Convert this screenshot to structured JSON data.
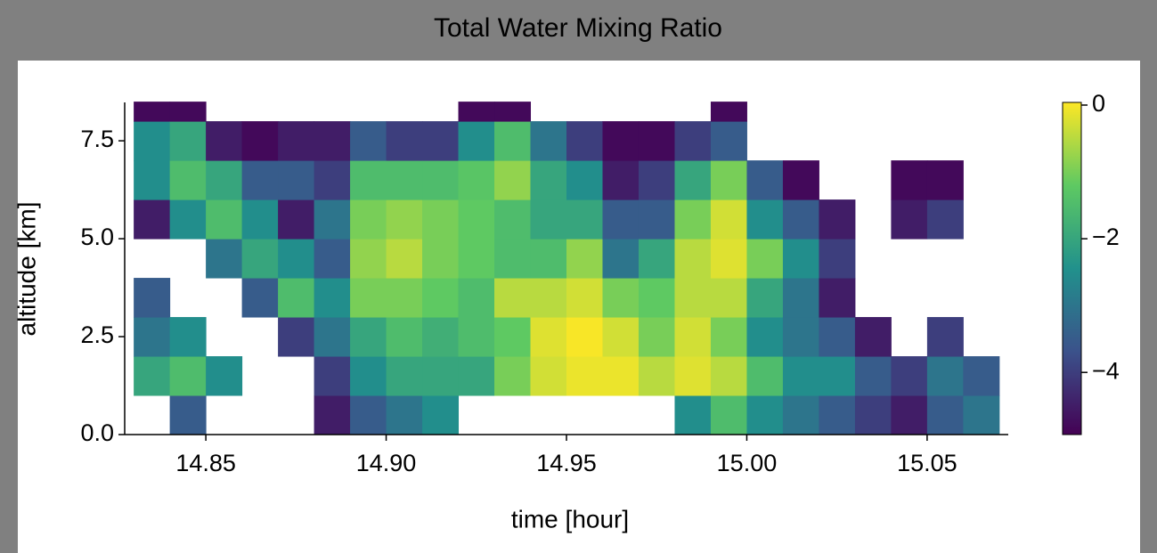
{
  "chart_data": {
    "type": "heatmap",
    "title": "Total Water Mixing Ratio",
    "x_label": "time [hour]",
    "y_label": "altitude [km]",
    "x_edges": [
      14.83,
      14.84,
      14.85,
      14.86,
      14.87,
      14.88,
      14.89,
      14.9,
      14.91,
      14.92,
      14.93,
      14.94,
      14.95,
      14.96,
      14.97,
      14.98,
      14.99,
      15.0,
      15.01,
      15.02,
      15.03,
      15.04,
      15.05,
      15.06,
      15.07
    ],
    "y_edges": [
      0,
      1,
      2,
      3,
      4,
      5,
      6,
      7,
      8,
      8.5
    ],
    "values": [
      [
        null,
        -2,
        -3,
        -3.5,
        null,
        -4.5,
        -2.5,
        -2.5,
        -4.8
      ],
      [
        -3.5,
        -1.5,
        -2.5,
        null,
        null,
        -2.5,
        -1.5,
        -2,
        -4.8
      ],
      [
        null,
        -2.5,
        null,
        null,
        -3,
        -1.5,
        -2,
        -4.5,
        null
      ],
      [
        null,
        null,
        null,
        -3.5,
        -2,
        -2.5,
        -3.5,
        -4.8,
        null
      ],
      [
        null,
        null,
        -4,
        -1.5,
        -2.5,
        -4.5,
        -3.5,
        -4.5,
        null
      ],
      [
        -4.5,
        -4,
        -3,
        -2.5,
        -3.5,
        -3,
        -4,
        -4.5,
        null
      ],
      [
        -3.5,
        -2.5,
        -2,
        -1,
        -0.8,
        -1,
        -1.5,
        -3.5,
        null
      ],
      [
        -3,
        -2,
        -1.5,
        -1,
        -0.5,
        -0.8,
        -1.5,
        -4,
        null
      ],
      [
        -2.5,
        -2,
        -1.8,
        -1.2,
        -1,
        -1,
        -1.5,
        -4,
        null
      ],
      [
        null,
        -2,
        -1.5,
        -1.5,
        -1.2,
        -1.2,
        -1.3,
        -2.5,
        -4.8
      ],
      [
        null,
        -1,
        -1.2,
        -0.5,
        -1.5,
        -1.5,
        -0.8,
        -1.5,
        -4.8
      ],
      [
        null,
        -0.3,
        -0.2,
        -0.5,
        -1.5,
        -2,
        -2,
        -3,
        null
      ],
      [
        null,
        -0.1,
        0,
        -0.3,
        -0.8,
        -2,
        -2.5,
        -4,
        null
      ],
      [
        null,
        -0.1,
        -0.3,
        -1,
        -3,
        -3.5,
        -4.5,
        -4.8,
        null
      ],
      [
        null,
        -0.5,
        -1,
        -1.2,
        -2,
        -3.5,
        -4,
        -4.8,
        null
      ],
      [
        -2.5,
        -0.2,
        -0.3,
        -0.5,
        -0.5,
        -1,
        -2,
        -4,
        null
      ],
      [
        -1.5,
        -0.5,
        -1,
        -0.5,
        -0.2,
        -0.3,
        -1,
        -3.5,
        -4.8
      ],
      [
        -2.5,
        -1.5,
        -2.5,
        -2,
        -1,
        -2.5,
        -3.5,
        null,
        null
      ],
      [
        -3,
        -2.5,
        -3,
        -3,
        -2.5,
        -3.5,
        -4.8,
        null,
        null
      ],
      [
        -3.5,
        -2.5,
        -3.5,
        -4.5,
        -4,
        -4.5,
        null,
        null,
        null
      ],
      [
        -4,
        -3.5,
        -4.5,
        null,
        null,
        null,
        null,
        null,
        null
      ],
      [
        -4.5,
        -4,
        null,
        null,
        null,
        -4.5,
        -4.8,
        null,
        null
      ],
      [
        -3.5,
        -3,
        -4,
        null,
        null,
        -4,
        -4.8,
        null,
        null
      ],
      [
        -3,
        -3.5,
        null,
        null,
        null,
        null,
        null,
        null,
        null
      ]
    ],
    "xlim": [
      14.8275,
      15.0725
    ],
    "ylim": [
      0,
      8.48
    ],
    "xticks": [
      14.85,
      {
        "value": 14.9,
        "label": "14.90"
      },
      14.95,
      {
        "value": 15.0,
        "label": "15.00"
      },
      15.05
    ],
    "yticks": [
      {
        "value": 0,
        "label": "0.0"
      },
      2.5,
      {
        "value": 5,
        "label": "5.0"
      },
      7.5
    ],
    "clim": [
      -4.93,
      0.04
    ],
    "cticks": [
      0,
      {
        "value": -2,
        "label": "−2"
      },
      {
        "value": -4,
        "label": "−4"
      }
    ],
    "colormap_colors": [
      "#440154",
      "#3b528b",
      "#21918c",
      "#5ec962",
      "#fde725"
    ]
  }
}
